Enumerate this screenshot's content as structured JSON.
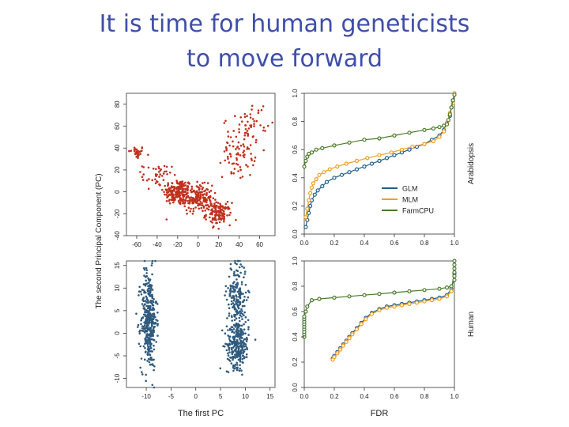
{
  "slide": {
    "title_line1": "It is time for human geneticists",
    "title_line2": "to move forward"
  },
  "colors": {
    "title": "#3f4ea8",
    "pca_top": "#c0301c",
    "pca_bottom": "#2f5a7e",
    "glm": "#1f5f8b",
    "mlm": "#f0a020",
    "farmcpu": "#4a7a2a"
  },
  "chart_data": [
    {
      "type": "scatter",
      "panel": "PCA Arabidopsis",
      "ylabel": "The second Principal Component (PC)",
      "xlim": [
        -70,
        75
      ],
      "ylim": [
        -40,
        90
      ],
      "xticks": [
        "-60",
        "-40",
        "-20",
        "0",
        "20",
        "40",
        "60"
      ],
      "yticks": [
        "-40",
        "-20",
        "0",
        "20",
        "40",
        "60",
        "80"
      ],
      "clusters": [
        {
          "cx": -60,
          "cy": 36,
          "sx": 4,
          "sy": 3,
          "n": 30
        },
        {
          "cx": -20,
          "cy": 0,
          "sx": 7,
          "sy": 6,
          "n": 180
        },
        {
          "cx": 0,
          "cy": -6,
          "sx": 7,
          "sy": 6,
          "n": 180
        },
        {
          "cx": 20,
          "cy": -20,
          "sx": 6,
          "sy": 5,
          "n": 130
        },
        {
          "cx": 40,
          "cy": 40,
          "sx": 8,
          "sy": 14,
          "n": 90
        },
        {
          "cx": 55,
          "cy": 65,
          "sx": 6,
          "sy": 9,
          "n": 30
        },
        {
          "cx": -40,
          "cy": 15,
          "sx": 7,
          "sy": 5,
          "n": 40
        }
      ]
    },
    {
      "type": "scatter",
      "panel": "PCA Human",
      "xlabel": "The first PC",
      "xlim": [
        -14,
        16
      ],
      "ylim": [
        -12,
        16
      ],
      "xticks": [
        "-10",
        "-5",
        "0",
        "5",
        "10",
        "15"
      ],
      "yticks": [
        "-10",
        "-5",
        "0",
        "5",
        "10",
        "15"
      ],
      "clusters": [
        {
          "cx": -9.5,
          "cy": 3,
          "sx": 0.8,
          "sy": 5.5,
          "n": 380
        },
        {
          "cx": 8.5,
          "cy": -2.5,
          "sx": 1.1,
          "sy": 2.5,
          "n": 260
        },
        {
          "cx": 8.3,
          "cy": 8,
          "sx": 1.0,
          "sy": 4,
          "n": 200
        }
      ]
    },
    {
      "type": "line",
      "panel": "Arabidopsis",
      "ylabel": "Arabidopsis",
      "xlim": [
        0,
        1
      ],
      "ylim": [
        0,
        1
      ],
      "xticks": [
        "0.0",
        "0.2",
        "0.4",
        "0.6",
        "0.8",
        "1.0"
      ],
      "yticks": [
        "0.0",
        "0.2",
        "0.4",
        "0.6",
        "0.8",
        "1.0"
      ],
      "legend_position": "bottom-right",
      "series": [
        {
          "name": "GLM",
          "x": [
            0.01,
            0.02,
            0.03,
            0.04,
            0.05,
            0.07,
            0.09,
            0.12,
            0.15,
            0.2,
            0.25,
            0.3,
            0.35,
            0.4,
            0.45,
            0.5,
            0.55,
            0.6,
            0.65,
            0.7,
            0.75,
            0.8,
            0.85,
            0.9,
            0.93,
            0.95,
            0.97,
            0.98,
            0.99,
            1.0
          ],
          "y": [
            0.05,
            0.1,
            0.15,
            0.2,
            0.24,
            0.28,
            0.31,
            0.34,
            0.37,
            0.4,
            0.42,
            0.44,
            0.46,
            0.48,
            0.5,
            0.52,
            0.54,
            0.56,
            0.58,
            0.6,
            0.62,
            0.64,
            0.67,
            0.7,
            0.74,
            0.79,
            0.84,
            0.9,
            0.95,
            1.0
          ]
        },
        {
          "name": "MLM",
          "x": [
            0.01,
            0.02,
            0.03,
            0.04,
            0.05,
            0.06,
            0.08,
            0.1,
            0.13,
            0.17,
            0.22,
            0.28,
            0.35,
            0.42,
            0.5,
            0.58,
            0.65,
            0.72,
            0.8,
            0.86,
            0.9,
            0.93,
            0.95,
            0.97,
            0.99,
            1.0
          ],
          "y": [
            0.12,
            0.18,
            0.24,
            0.29,
            0.33,
            0.36,
            0.39,
            0.42,
            0.44,
            0.46,
            0.48,
            0.5,
            0.52,
            0.54,
            0.56,
            0.58,
            0.6,
            0.62,
            0.64,
            0.66,
            0.69,
            0.73,
            0.79,
            0.86,
            0.93,
            1.0
          ]
        },
        {
          "name": "FarmCPU",
          "x": [
            0.0,
            0.01,
            0.02,
            0.03,
            0.05,
            0.08,
            0.12,
            0.2,
            0.3,
            0.4,
            0.5,
            0.6,
            0.7,
            0.8,
            0.86,
            0.9,
            0.93,
            0.95,
            0.96,
            0.97,
            0.98,
            0.99,
            1.0
          ],
          "y": [
            0.48,
            0.52,
            0.55,
            0.57,
            0.58,
            0.6,
            0.61,
            0.63,
            0.65,
            0.67,
            0.68,
            0.7,
            0.72,
            0.74,
            0.75,
            0.76,
            0.77,
            0.78,
            0.81,
            0.85,
            0.9,
            0.95,
            0.99
          ]
        }
      ]
    },
    {
      "type": "line",
      "panel": "Human",
      "ylabel": "Human",
      "xlabel": "FDR",
      "xlim": [
        0,
        1
      ],
      "ylim": [
        0,
        1
      ],
      "xticks": [
        "0.0",
        "0.2",
        "0.4",
        "0.6",
        "0.8",
        "1.0"
      ],
      "yticks": [
        "0.0",
        "0.2",
        "0.4",
        "0.6",
        "0.8",
        "1.0"
      ],
      "series": [
        {
          "name": "GLM",
          "x": [
            0.19,
            0.2,
            0.22,
            0.24,
            0.26,
            0.28,
            0.3,
            0.32,
            0.35,
            0.38,
            0.41,
            0.45,
            0.5,
            0.55,
            0.6,
            0.65,
            0.7,
            0.75,
            0.8,
            0.85,
            0.9,
            0.95,
            0.98,
            1.0
          ],
          "y": [
            0.23,
            0.25,
            0.28,
            0.31,
            0.34,
            0.37,
            0.4,
            0.43,
            0.47,
            0.51,
            0.55,
            0.59,
            0.62,
            0.64,
            0.65,
            0.66,
            0.67,
            0.68,
            0.69,
            0.7,
            0.71,
            0.73,
            0.78,
            0.9
          ]
        },
        {
          "name": "MLM",
          "x": [
            0.19,
            0.2,
            0.22,
            0.24,
            0.26,
            0.28,
            0.3,
            0.32,
            0.35,
            0.38,
            0.41,
            0.45,
            0.5,
            0.55,
            0.6,
            0.65,
            0.7,
            0.75,
            0.8,
            0.85,
            0.9,
            0.95,
            0.98,
            1.0
          ],
          "y": [
            0.22,
            0.24,
            0.27,
            0.3,
            0.33,
            0.36,
            0.39,
            0.42,
            0.46,
            0.5,
            0.54,
            0.58,
            0.61,
            0.63,
            0.64,
            0.65,
            0.66,
            0.67,
            0.68,
            0.69,
            0.7,
            0.72,
            0.76,
            0.88
          ]
        },
        {
          "name": "FarmCPU",
          "x": [
            0.0,
            0.0,
            0.0,
            0.0,
            0.0,
            0.0,
            0.0,
            0.0,
            0.0,
            0.01,
            0.02,
            0.05,
            0.1,
            0.2,
            0.3,
            0.4,
            0.5,
            0.6,
            0.7,
            0.8,
            0.9,
            0.95,
            0.98,
            1.0,
            1.0,
            1.0,
            1.0,
            1.0,
            1.0
          ],
          "y": [
            0.4,
            0.42,
            0.44,
            0.46,
            0.48,
            0.5,
            0.52,
            0.54,
            0.56,
            0.6,
            0.64,
            0.69,
            0.7,
            0.71,
            0.72,
            0.73,
            0.74,
            0.75,
            0.76,
            0.77,
            0.78,
            0.79,
            0.8,
            0.85,
            0.88,
            0.91,
            0.94,
            0.97,
            1.0
          ]
        }
      ]
    }
  ]
}
